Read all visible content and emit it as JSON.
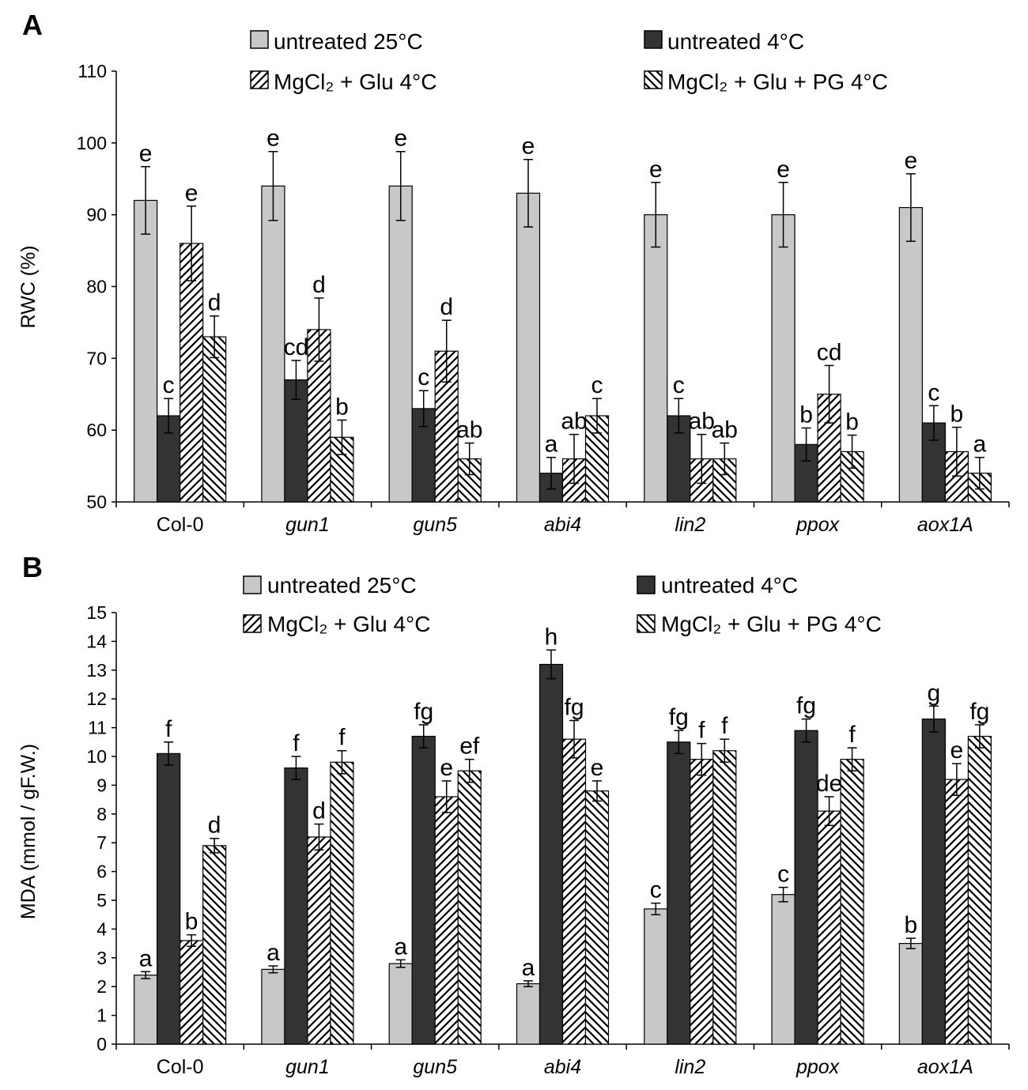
{
  "chart_data": [
    {
      "panel": "A",
      "type": "bar",
      "ylabel": "RWC (%)",
      "ylim": [
        50,
        110
      ],
      "yticks": [
        50,
        60,
        70,
        80,
        90,
        100,
        110
      ],
      "categories": [
        "Col-0",
        "gun1",
        "gun5",
        "abi4",
        "lin2",
        "ppox",
        "aox1A"
      ],
      "italic_categories": [
        false,
        true,
        true,
        true,
        true,
        true,
        true
      ],
      "legend_labels": [
        "untreated 25°C",
        "untreated 4°C",
        "MgCl₂ + Glu 4°C",
        "MgCl₂ + Glu + PG 4°C"
      ],
      "series": [
        {
          "name": "untreated 25°C",
          "style": "gray",
          "values": [
            92,
            94,
            94,
            93,
            90,
            90,
            91
          ],
          "errors": [
            4.7,
            4.8,
            4.8,
            4.7,
            4.5,
            4.5,
            4.7
          ],
          "labels": [
            "e",
            "e",
            "e",
            "e",
            "e",
            "e",
            "e"
          ]
        },
        {
          "name": "untreated 4°C",
          "style": "dark",
          "values": [
            62,
            67,
            63,
            54,
            62,
            58,
            61
          ],
          "errors": [
            2.4,
            2.7,
            2.5,
            2.2,
            2.4,
            2.3,
            2.4
          ],
          "labels": [
            "c",
            "cd",
            "c",
            "a",
            "c",
            "b",
            "c"
          ]
        },
        {
          "name": "MgCl₂ + Glu 4°C",
          "style": "hatch-fwd",
          "values": [
            86,
            74,
            71,
            56,
            56,
            65,
            57
          ],
          "errors": [
            5.2,
            4.4,
            4.3,
            3.4,
            3.4,
            4.0,
            3.4
          ],
          "labels": [
            "e",
            "d",
            "d",
            "ab",
            "ab",
            "cd",
            "b"
          ]
        },
        {
          "name": "MgCl₂ + Glu + PG 4°C",
          "style": "hatch-back",
          "values": [
            73,
            59,
            56,
            62,
            56,
            57,
            54
          ],
          "errors": [
            2.9,
            2.4,
            2.2,
            2.4,
            2.2,
            2.3,
            2.2
          ],
          "labels": [
            "d",
            "b",
            "ab",
            "c",
            "ab",
            "b",
            "a"
          ]
        }
      ]
    },
    {
      "panel": "B",
      "type": "bar",
      "ylabel": "MDA (mmol / gF.W.)",
      "ylim": [
        0,
        15
      ],
      "yticks": [
        0,
        1,
        2,
        3,
        4,
        5,
        6,
        7,
        8,
        9,
        10,
        11,
        12,
        13,
        14,
        15
      ],
      "categories": [
        "Col-0",
        "gun1",
        "gun5",
        "abi4",
        "lin2",
        "ppox",
        "aox1A"
      ],
      "italic_categories": [
        false,
        true,
        true,
        true,
        true,
        true,
        true
      ],
      "legend_labels": [
        "untreated 25°C",
        "untreated 4°C",
        "MgCl₂ + Glu 4°C",
        "MgCl₂ + Glu + PG 4°C"
      ],
      "series": [
        {
          "name": "untreated 25°C",
          "style": "gray",
          "values": [
            2.4,
            2.6,
            2.8,
            2.1,
            4.7,
            5.2,
            3.5
          ],
          "errors": [
            0.12,
            0.12,
            0.13,
            0.1,
            0.2,
            0.25,
            0.18
          ],
          "labels": [
            "a",
            "a",
            "a",
            "a",
            "c",
            "c",
            "b"
          ]
        },
        {
          "name": "untreated 4°C",
          "style": "dark",
          "values": [
            10.1,
            9.6,
            10.7,
            13.2,
            10.5,
            10.9,
            11.3
          ],
          "errors": [
            0.4,
            0.4,
            0.4,
            0.5,
            0.4,
            0.4,
            0.45
          ],
          "labels": [
            "f",
            "f",
            "fg",
            "h",
            "fg",
            "fg",
            "g"
          ]
        },
        {
          "name": "MgCl₂ + Glu 4°C",
          "style": "hatch-fwd",
          "values": [
            3.6,
            7.2,
            8.6,
            10.6,
            9.9,
            8.1,
            9.2
          ],
          "errors": [
            0.2,
            0.45,
            0.55,
            0.65,
            0.55,
            0.5,
            0.55
          ],
          "labels": [
            "b",
            "d",
            "e",
            "fg",
            "f",
            "de",
            "e"
          ]
        },
        {
          "name": "MgCl₂ + Glu + PG 4°C",
          "style": "hatch-back",
          "values": [
            6.9,
            9.8,
            9.5,
            8.8,
            10.2,
            9.9,
            10.7
          ],
          "errors": [
            0.25,
            0.4,
            0.4,
            0.35,
            0.4,
            0.4,
            0.4
          ],
          "labels": [
            "d",
            "f",
            "ef",
            "e",
            "f",
            "f",
            "fg"
          ]
        }
      ]
    }
  ]
}
